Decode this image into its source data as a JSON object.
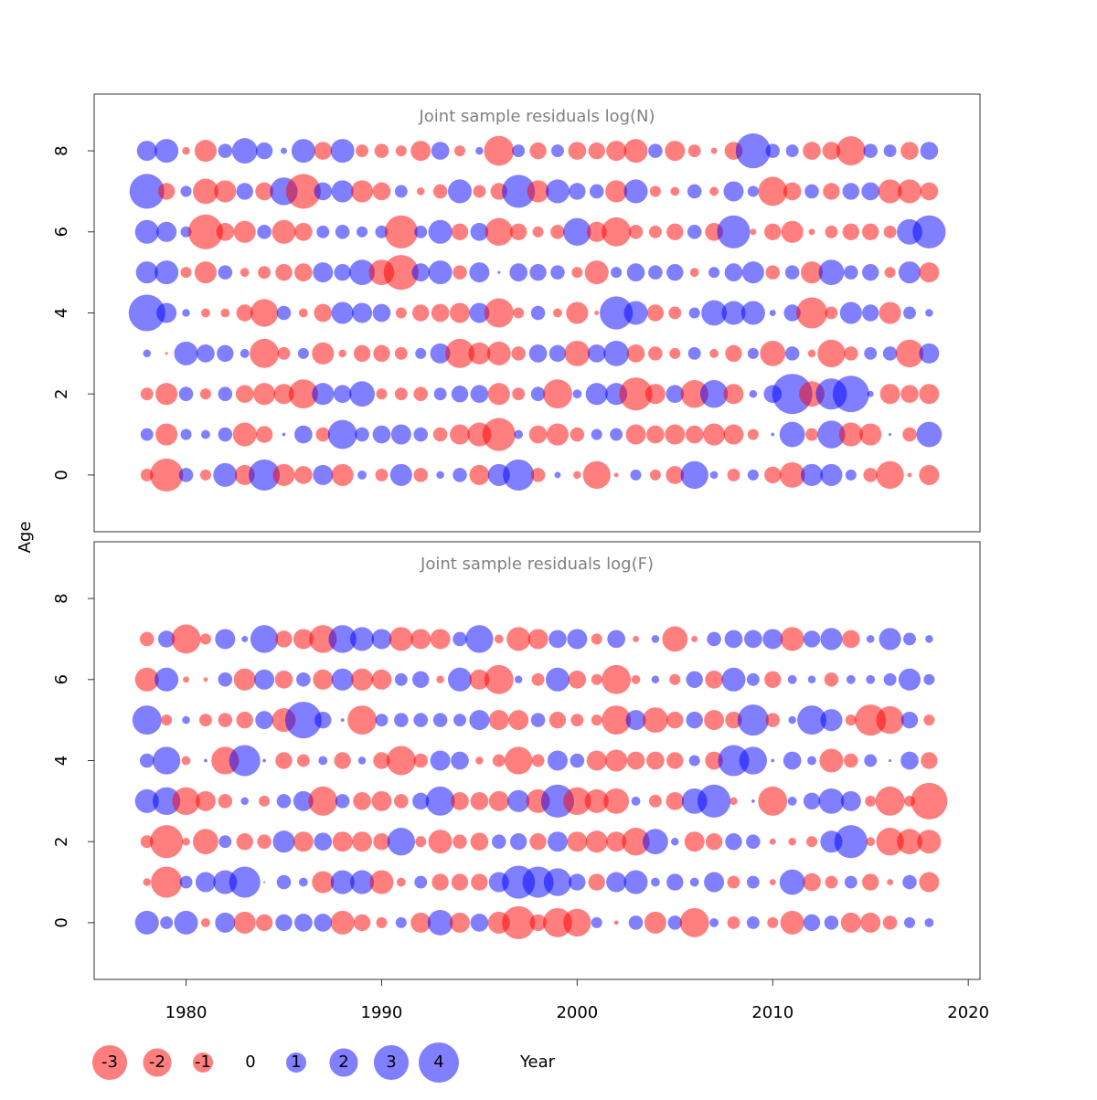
{
  "chart_data": {
    "type": "bubble",
    "x_label": "Year",
    "y_label": "Age",
    "xlim": [
      1975.3,
      2020.6
    ],
    "xticks": [
      1980,
      1990,
      2000,
      2010,
      2020
    ],
    "colors": {
      "negative": "rgba(255,0,0,0.5)",
      "positive": "rgba(0,0,255,0.5)"
    },
    "legend": {
      "values": [
        -3,
        -2,
        -1,
        0,
        1,
        2,
        3,
        4
      ]
    },
    "years": [
      1978,
      1979,
      1980,
      1981,
      1982,
      1983,
      1984,
      1985,
      1986,
      1987,
      1988,
      1989,
      1990,
      1991,
      1992,
      1993,
      1994,
      1995,
      1996,
      1997,
      1998,
      1999,
      2000,
      2001,
      2002,
      2003,
      2004,
      2005,
      2006,
      2007,
      2008,
      2009,
      2010,
      2011,
      2012,
      2013,
      2014,
      2015,
      2016,
      2017,
      2018
    ],
    "panels": [
      {
        "title": "Joint sample residuals log(N)",
        "ages": [
          0,
          1,
          2,
          3,
          4,
          5,
          6,
          7,
          8
        ],
        "ylim": [
          -1.4,
          9.4
        ],
        "yticks": [
          0,
          2,
          4,
          6,
          8
        ],
        "residuals": [
          [
            -0.4,
            -2.7,
            0.5,
            -0.3,
            1.4,
            -1,
            2.4,
            -1.2,
            -0.8,
            1,
            -1.2,
            0.2,
            -0.4,
            1.2,
            -0.5,
            0.15,
            0.5,
            -1,
            1.2,
            2.4,
            -0.5,
            0.1,
            -0.15,
            -1.9,
            -0.05,
            0.3,
            -0.3,
            -0.8,
            1.9,
            0.15,
            -0.4,
            0.3,
            -0.7,
            -1.6,
            1.2,
            1.2,
            0.3,
            -0.5,
            -1.9,
            -0.05,
            -1
          ],
          [
            0.4,
            -1.2,
            0.3,
            0.2,
            0.5,
            -1.4,
            -0.7,
            0.03,
            0.8,
            -0.5,
            2.1,
            0.5,
            0.8,
            1,
            0.5,
            -0.5,
            -1,
            -1.4,
            -2.7,
            0.2,
            -0.8,
            -1.2,
            -0.5,
            0.3,
            0.4,
            -1,
            -0.8,
            -1,
            -0.8,
            -1.2,
            -1,
            -0.3,
            0.03,
            1.6,
            -0.4,
            1.9,
            -1.4,
            -1.2,
            0.02,
            -0.5,
            1.6
          ],
          [
            -0.4,
            -1.2,
            0.5,
            -0.3,
            0.5,
            -0.8,
            -1.2,
            -1,
            -2.1,
            1.2,
            0.8,
            1.6,
            -0.3,
            -0.4,
            -0.5,
            0.4,
            0.7,
            0.8,
            -1.2,
            -0.4,
            0.5,
            -2.1,
            0.2,
            1.2,
            1.2,
            -2.7,
            -1,
            0.8,
            -1.9,
            1.9,
            -1,
            0.15,
            0.8,
            4,
            -1.6,
            2.4,
            3.3,
            0.1,
            -1,
            -0.8,
            -1
          ],
          [
            0.15,
            -0.02,
            1.4,
            0.8,
            0.7,
            0.2,
            -2.1,
            -0.4,
            0.3,
            -1.2,
            -0.15,
            -0.7,
            -0.7,
            -0.4,
            0.3,
            1,
            -2.1,
            -1.2,
            -1.4,
            -0.5,
            0.8,
            0.7,
            -1.6,
            0.8,
            1.6,
            -0.8,
            -0.5,
            -0.3,
            0.4,
            -0.2,
            -0.7,
            0.3,
            -1.6,
            0.5,
            -0.15,
            -1.9,
            -0.5,
            0.4,
            0.5,
            -1.9,
            1
          ],
          [
            3.3,
            1,
            0.15,
            -0.2,
            -0.2,
            -0.7,
            -1.9,
            0.5,
            -0.2,
            -0.8,
            1.2,
            1,
            0.8,
            -0.3,
            -0.7,
            -0.8,
            -1,
            1,
            -2.1,
            -0.3,
            0.5,
            -0.2,
            -1.2,
            -0.05,
            2.7,
            1.4,
            -0.7,
            -0.4,
            0.3,
            1.6,
            1.4,
            1.4,
            0.1,
            0.7,
            -2.4,
            -0.4,
            1.2,
            0.7,
            -1.2,
            0.4,
            0.15
          ],
          [
            1.2,
            1.4,
            -0.3,
            -1.2,
            0.5,
            -0.2,
            -0.4,
            -0.7,
            -0.8,
            1,
            0.7,
            1.6,
            -1.6,
            -3,
            0.8,
            1.4,
            -0.5,
            1,
            0.02,
            0.8,
            0.7,
            0.5,
            -0.3,
            -1.4,
            0.3,
            0.8,
            0.5,
            0.7,
            -0.2,
            0.3,
            0.8,
            1.2,
            -0.5,
            0.5,
            -1.2,
            1.6,
            0.5,
            0.7,
            -0.3,
            1.2,
            -1
          ],
          [
            1.4,
            1,
            0.3,
            -3,
            -0.8,
            -1.2,
            0.5,
            -1.4,
            -0.8,
            0.4,
            0.5,
            0.3,
            0.4,
            -2.7,
            0.4,
            1.4,
            -0.7,
            0.8,
            -1.9,
            -0.7,
            -0.3,
            -0.5,
            1.9,
            -1,
            -2.1,
            -0.5,
            -0.4,
            -0.7,
            0.5,
            -0.8,
            2.7,
            -0.1,
            -0.7,
            -1.2,
            -0.1,
            -0.4,
            -0.7,
            -0.7,
            -0.4,
            1.6,
            2.7
          ],
          [
            3,
            -0.7,
            0.3,
            -1.6,
            -1.2,
            0.7,
            -0.8,
            1.9,
            -3,
            0.8,
            1.2,
            -1.2,
            -0.8,
            0.4,
            -0.15,
            -0.5,
            1.4,
            -0.4,
            -0.7,
            2.7,
            -1.2,
            1.4,
            0.7,
            0.5,
            -1.2,
            1.4,
            -0.3,
            -0.2,
            0.5,
            -0.2,
            1,
            0.3,
            -2.1,
            -0.8,
            0.5,
            -0.7,
            0.7,
            0.8,
            -1.4,
            -1.4,
            -0.8
          ],
          [
            1,
            1.4,
            -0.15,
            -1.2,
            0.5,
            1.6,
            0.7,
            0.1,
            1.4,
            -0.8,
            1.4,
            -0.4,
            -0.5,
            -0.3,
            -1,
            0.8,
            -0.3,
            0.15,
            -2.2,
            0.4,
            -0.7,
            0.4,
            -0.8,
            -0.7,
            -1,
            -1.4,
            0.5,
            -1,
            -0.4,
            -0.1,
            -0.8,
            3,
            0.5,
            0.4,
            -0.8,
            -0.8,
            -2.1,
            0.5,
            0.4,
            -0.8,
            0.8
          ]
        ]
      },
      {
        "title": "Joint sample residuals log(F)",
        "ages": [
          0,
          1,
          2,
          3,
          4,
          5,
          6,
          7
        ],
        "ylim": [
          -1.4,
          9.4
        ],
        "yticks": [
          0,
          2,
          4,
          6,
          8
        ],
        "residuals": [
          [
            1.4,
            0.4,
            1.4,
            -0.2,
            1,
            -1.2,
            -0.7,
            0.7,
            0.8,
            0.8,
            -1.4,
            -0.7,
            -0.3,
            0.3,
            -1,
            1.6,
            -1,
            0.8,
            -1.2,
            -2.7,
            -0.7,
            -2.1,
            -1.9,
            0.3,
            -0.05,
            0.5,
            -1.2,
            0.5,
            -2.1,
            0.2,
            -0.4,
            0.4,
            -0.3,
            -1.4,
            0.7,
            0.5,
            -1,
            -1,
            -0.5,
            0.3,
            0.2
          ],
          [
            -0.15,
            -2.4,
            0.4,
            1,
            1.4,
            2.4,
            0.01,
            0.5,
            0.2,
            -1.2,
            1.4,
            1.4,
            -1.4,
            -0.2,
            0.4,
            -0.7,
            -0.7,
            -0.7,
            1,
            2.7,
            2.4,
            1.9,
            0.7,
            -0.7,
            1,
            1.4,
            0.2,
            0.7,
            0.2,
            1,
            -0.4,
            0.4,
            -0.1,
            1.6,
            -0.8,
            -0.4,
            0.4,
            -0.7,
            -0.1,
            0.5,
            -1
          ],
          [
            -0.4,
            -2.7,
            -0.15,
            -1.6,
            0.4,
            -0.7,
            -0.5,
            1.2,
            -1,
            0.8,
            -1,
            -1,
            -0.7,
            1.9,
            -0.3,
            -1.4,
            -0.5,
            -0.8,
            0.5,
            0.7,
            -0.7,
            1,
            -1,
            -1.2,
            -1,
            -1.9,
            1.6,
            0.15,
            -1,
            -0.7,
            0.7,
            0.5,
            -0.1,
            -0.15,
            -0.3,
            1.2,
            2.7,
            -0.2,
            -1.9,
            -1.6,
            -1.4
          ],
          [
            1.4,
            1.9,
            -1.9,
            -1,
            -0.5,
            0.15,
            -0.3,
            0.5,
            1,
            -2.1,
            0.5,
            -0.8,
            -1,
            -0.5,
            0.7,
            2.1,
            -0.8,
            -0.8,
            -1,
            1.2,
            -1.4,
            2.7,
            -1.9,
            -1.4,
            -1.6,
            0.2,
            -0.4,
            -0.8,
            1.6,
            2.7,
            -0.15,
            0.03,
            -2.1,
            0.2,
            0.7,
            1.6,
            1,
            -0.3,
            -2.1,
            -0.3,
            -3.3
          ],
          [
            0.5,
            1.9,
            -0.2,
            0.03,
            -1.9,
            2.4,
            0.03,
            -0.7,
            -0.4,
            0.2,
            -0.7,
            0.15,
            -0.7,
            -2.1,
            -0.5,
            1,
            0.8,
            -0.15,
            -0.4,
            -1.9,
            -0.4,
            1,
            0.5,
            -1,
            -1.2,
            -0.8,
            -0.8,
            -0.7,
            0.3,
            -0.8,
            2.4,
            1.9,
            0.03,
            0.8,
            0.2,
            -1.4,
            -0.5,
            0.4,
            0.02,
            0.8,
            -0.7
          ],
          [
            2.1,
            -0.3,
            0.15,
            -0.4,
            -0.5,
            -0.7,
            0.8,
            -1.4,
            3.3,
            0.7,
            0.03,
            -2.1,
            0.4,
            0.5,
            0.5,
            0.5,
            0.4,
            1,
            -1,
            -1,
            0.5,
            -0.7,
            -0.4,
            -0.3,
            -2.1,
            1,
            -1.6,
            -0.7,
            0.7,
            -1,
            -0.7,
            2.4,
            -0.5,
            0.15,
            2.1,
            1.2,
            -0.3,
            -2.4,
            -1.9,
            0.7,
            -0.3
          ],
          [
            -1.4,
            1.4,
            -0.1,
            -0.05,
            0.5,
            -1.2,
            1,
            -0.8,
            0.5,
            -1,
            1.2,
            -1.2,
            -1,
            0.4,
            0.7,
            -0.15,
            1.4,
            -1,
            -2.1,
            0.15,
            -0.4,
            1.4,
            -0.8,
            -0.3,
            -2.1,
            -0.2,
            0.15,
            -0.3,
            0.7,
            -0.8,
            1.4,
            0.4,
            -0.7,
            0.2,
            0.15,
            -0.5,
            0.2,
            0.2,
            0.4,
            1.2,
            0.3
          ],
          [
            -0.5,
            0.7,
            -2.1,
            -0.3,
            1,
            0.1,
            1.9,
            -0.7,
            -1,
            -1.9,
            1.9,
            1.4,
            1,
            -1.4,
            -1,
            -1,
            0.5,
            1.9,
            -0.2,
            -1.4,
            -1,
            0.8,
            1,
            -0.3,
            0.8,
            -0.1,
            0.15,
            -1.6,
            -0.1,
            0.5,
            0.8,
            0.8,
            1,
            -1.4,
            0.7,
            1.2,
            -0.8,
            0.15,
            1.2,
            0.4,
            0.15
          ]
        ]
      }
    ]
  }
}
